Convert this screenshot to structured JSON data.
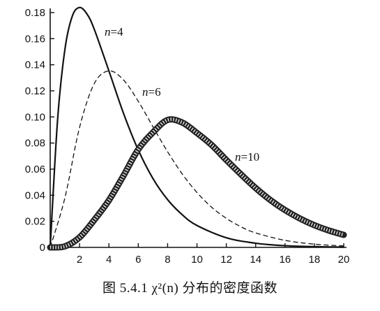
{
  "chart_data": {
    "type": "line",
    "caption": "图 5.4.1   χ²(n) 分布的密度函数",
    "xlim": [
      0,
      20
    ],
    "ylim": [
      0,
      0.18
    ],
    "xticks": [
      "2",
      "4",
      "6",
      "8",
      "10",
      "12",
      "14",
      "16",
      "18",
      "20"
    ],
    "yticks": [
      "0",
      "0.02",
      "0.04",
      "0.06",
      "0.08",
      "0.10",
      "0.12",
      "0.14",
      "0.16",
      "0.18"
    ],
    "x_axis_origin_label": "0",
    "grid": false,
    "legend": "none",
    "series": [
      {
        "name": "n=4",
        "style": "solid",
        "color": "#111111",
        "x": [
          0,
          0.5,
          1,
          1.5,
          2,
          2.5,
          3,
          4,
          5,
          6,
          7,
          8,
          9,
          10,
          12,
          14,
          16,
          18,
          20
        ],
        "y": [
          0,
          0.0974,
          0.1516,
          0.1771,
          0.1839,
          0.179,
          0.1673,
          0.1353,
          0.1026,
          0.0747,
          0.0528,
          0.0366,
          0.025,
          0.0168,
          0.0074,
          0.0032,
          0.0013,
          0.0006,
          0.0002
        ]
      },
      {
        "name": "n=6",
        "style": "dashed",
        "color": "#111111",
        "x": [
          0,
          1,
          2,
          3,
          4,
          5,
          6,
          7,
          8,
          9,
          10,
          11,
          12,
          13,
          14,
          16,
          18,
          20
        ],
        "y": [
          0,
          0.0379,
          0.092,
          0.1255,
          0.1353,
          0.1283,
          0.112,
          0.0925,
          0.0733,
          0.0562,
          0.0421,
          0.0308,
          0.0223,
          0.0158,
          0.0111,
          0.0054,
          0.0025,
          0.0011
        ]
      },
      {
        "name": "n=10",
        "style": "thick-hatched",
        "color": "#222222",
        "x": [
          0,
          1,
          2,
          3,
          4,
          5,
          6,
          7,
          8,
          9,
          10,
          11,
          12,
          13,
          14,
          15,
          16,
          17,
          18,
          19,
          20
        ],
        "y": [
          0,
          0.0008,
          0.0077,
          0.021,
          0.0361,
          0.0551,
          0.0751,
          0.0881,
          0.0977,
          0.0957,
          0.0877,
          0.0785,
          0.067,
          0.056,
          0.0455,
          0.0363,
          0.0286,
          0.0222,
          0.017,
          0.0129,
          0.0096
        ]
      }
    ]
  },
  "labels": {
    "n4": {
      "var": "n",
      "rest": "=4"
    },
    "n6": {
      "var": "n",
      "rest": "=6"
    },
    "n10": {
      "var": "n",
      "rest": "=10"
    }
  }
}
